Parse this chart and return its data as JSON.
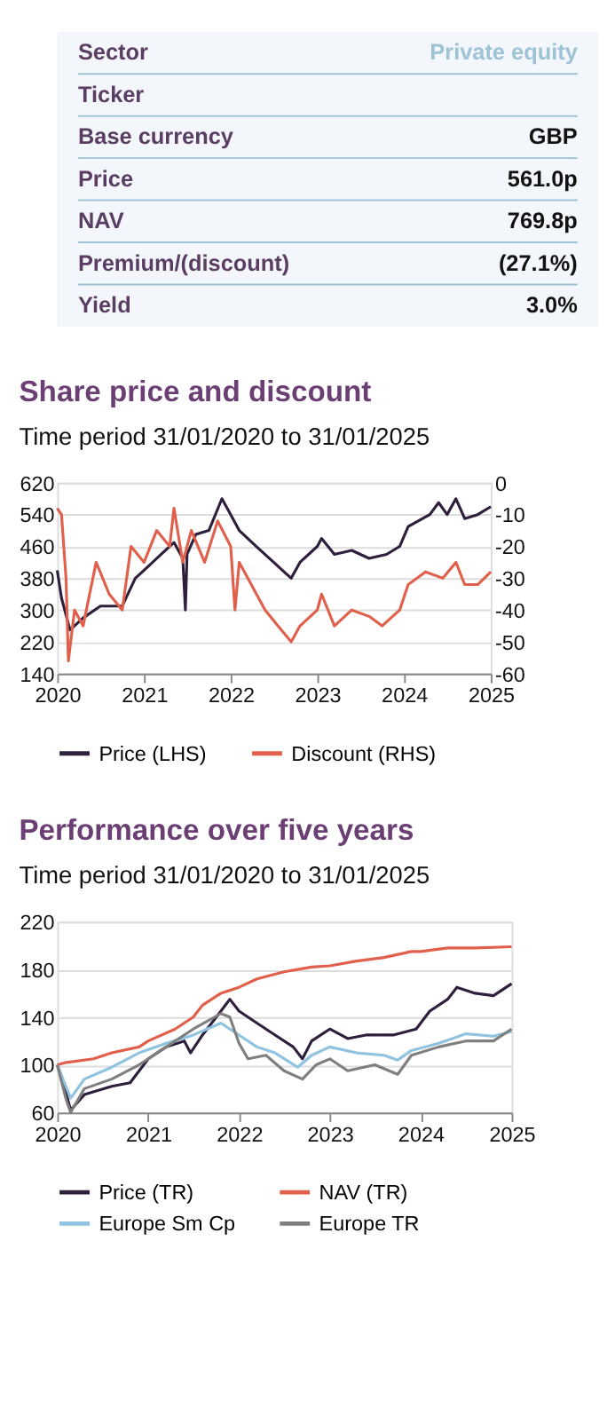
{
  "chart_data": [
    {
      "type": "other",
      "categories": [
        "Sector",
        "Ticker",
        "Base currency",
        "Price",
        "NAV",
        "Premium/(discount)",
        "Yield"
      ],
      "value_labels": [
        "Private equity",
        null,
        "GBP",
        "561.0p",
        "769.8p",
        "(27.1%)",
        "3.0%"
      ]
    },
    {
      "type": "line",
      "title": "Share price and discount",
      "subtitle": "Time period 31/01/2020 to 31/01/2025",
      "xlim": [
        "2020-01-31",
        "2025-01-31"
      ],
      "xticks": [
        {
          "value": "2020-01-31",
          "label": "2020"
        },
        {
          "value": "2021-01-31",
          "label": "2021"
        },
        {
          "value": "2022-01-31",
          "label": "2022"
        },
        {
          "value": "2023-01-31",
          "label": "2023"
        },
        {
          "value": "2024-01-31",
          "label": "2024"
        },
        {
          "value": "2025-01-31",
          "label": "2025"
        }
      ],
      "ylim": [
        140,
        620
      ],
      "yticks": [
        140,
        220,
        300,
        380,
        460,
        540,
        620
      ],
      "y2lim": [
        -60,
        0
      ],
      "y2ticks": [
        -60,
        -50,
        -40,
        -30,
        -20,
        -10,
        0
      ],
      "grid": "y",
      "legend": "bottom",
      "series": [
        {
          "name": "Price (LHS)",
          "color": "#2e1f3d",
          "x": [
            "2020-01-31",
            "2020-02-18",
            "2020-03-25",
            "2020-05-19",
            "2020-07-31",
            "2020-10-31",
            "2020-12-25",
            "2021-01-31",
            "2021-04-13",
            "2021-06-06",
            "2021-07-13",
            "2021-07-24",
            "2021-07-31",
            "2021-09-06",
            "2021-10-31",
            "2021-12-25",
            "2022-01-31",
            "2022-03-08",
            "2022-05-19",
            "2022-07-31",
            "2022-09-24",
            "2022-10-13",
            "2022-11-19",
            "2023-01-31",
            "2023-02-18",
            "2023-04-13",
            "2023-06-25",
            "2023-09-06",
            "2023-11-19",
            "2024-01-13",
            "2024-02-18",
            "2024-05-19",
            "2024-06-25",
            "2024-07-31",
            "2024-09-06",
            "2024-10-13",
            "2024-12-07",
            "2025-01-31"
          ],
          "values": [
            400,
            330,
            250,
            280,
            310,
            310,
            380,
            400,
            440,
            470,
            430,
            300,
            440,
            490,
            500,
            580,
            540,
            500,
            460,
            420,
            390,
            380,
            420,
            460,
            480,
            440,
            450,
            430,
            440,
            460,
            510,
            540,
            570,
            540,
            580,
            530,
            540,
            560
          ]
        },
        {
          "name": "Discount (RHS)",
          "color": "#e0604c",
          "axis": "y2",
          "x": [
            "2020-01-31",
            "2020-02-18",
            "2020-03-08",
            "2020-03-18",
            "2020-04-13",
            "2020-05-19",
            "2020-07-13",
            "2020-09-06",
            "2020-10-31",
            "2020-12-07",
            "2021-01-31",
            "2021-03-25",
            "2021-05-19",
            "2021-06-06",
            "2021-07-13",
            "2021-08-18",
            "2021-10-13",
            "2021-12-07",
            "2022-01-31",
            "2022-02-18",
            "2022-03-08",
            "2022-04-13",
            "2022-06-25",
            "2022-08-18",
            "2022-10-13",
            "2022-11-19",
            "2023-01-31",
            "2023-02-18",
            "2023-04-13",
            "2023-06-25",
            "2023-09-06",
            "2023-10-31",
            "2024-01-13",
            "2024-02-18",
            "2024-05-01",
            "2024-07-13",
            "2024-09-06",
            "2024-10-13",
            "2024-12-07",
            "2025-01-31"
          ],
          "values": [
            -8,
            -10,
            -30,
            -56,
            -40,
            -45,
            -25,
            -35,
            -40,
            -20,
            -25,
            -15,
            -20,
            -8,
            -25,
            -15,
            -25,
            -12,
            -20,
            -40,
            -25,
            -30,
            -40,
            -45,
            -50,
            -45,
            -40,
            -35,
            -45,
            -40,
            -42,
            -45,
            -40,
            -32,
            -28,
            -30,
            -25,
            -32,
            -32,
            -28
          ]
        }
      ]
    },
    {
      "type": "line",
      "title": "Performance over five years",
      "subtitle": "Time period 31/01/2020 to 31/01/2025",
      "xlim": [
        "2020-01-31",
        "2025-01-31"
      ],
      "xticks": [
        {
          "value": "2020-01-31",
          "label": "2020"
        },
        {
          "value": "2021-01-31",
          "label": "2021"
        },
        {
          "value": "2022-01-31",
          "label": "2022"
        },
        {
          "value": "2023-01-31",
          "label": "2023"
        },
        {
          "value": "2024-01-31",
          "label": "2024"
        },
        {
          "value": "2025-01-31",
          "label": "2025"
        }
      ],
      "ylim": [
        60,
        220
      ],
      "yticks": [
        60,
        100,
        140,
        180,
        220
      ],
      "grid": "y",
      "legend": "bottom",
      "series": [
        {
          "name": "Price (TR)",
          "color": "#2e1f3d",
          "x": [
            "2020-01-31",
            "2020-02-18",
            "2020-03-25",
            "2020-05-19",
            "2020-09-06",
            "2020-11-19",
            "2021-01-31",
            "2021-04-13",
            "2021-06-25",
            "2021-07-20",
            "2021-09-06",
            "2021-11-19",
            "2021-12-25",
            "2022-01-31",
            "2022-04-13",
            "2022-06-25",
            "2022-09-06",
            "2022-10-13",
            "2022-11-19",
            "2023-01-31",
            "2023-04-13",
            "2023-06-25",
            "2023-10-13",
            "2024-01-13",
            "2024-03-08",
            "2024-05-19",
            "2024-06-25",
            "2024-09-06",
            "2024-11-19",
            "2025-01-31"
          ],
          "values": [
            100,
            90,
            62,
            75,
            82,
            85,
            105,
            115,
            120,
            110,
            125,
            145,
            155,
            145,
            135,
            125,
            115,
            105,
            120,
            130,
            122,
            125,
            125,
            130,
            145,
            155,
            165,
            160,
            158,
            168
          ]
        },
        {
          "name": "NAV (TR)",
          "color": "#e0604c",
          "x": [
            "2020-01-31",
            "2020-03-08",
            "2020-06-25",
            "2020-09-06",
            "2020-12-25",
            "2021-01-31",
            "2021-05-19",
            "2021-07-31",
            "2021-09-06",
            "2021-11-19",
            "2022-01-31",
            "2022-04-13",
            "2022-07-31",
            "2022-11-19",
            "2023-01-31",
            "2023-05-19",
            "2023-09-06",
            "2023-12-25",
            "2024-01-31",
            "2024-05-19",
            "2024-09-06",
            "2025-01-31"
          ],
          "values": [
            100,
            102,
            105,
            110,
            115,
            120,
            130,
            140,
            150,
            160,
            165,
            172,
            178,
            182,
            183,
            187,
            190,
            195,
            195,
            198,
            198,
            199
          ]
        },
        {
          "name": "Europe Sm Cp",
          "color": "#8fc3e0",
          "x": [
            "2020-01-31",
            "2020-03-25",
            "2020-05-19",
            "2020-09-06",
            "2020-12-25",
            "2021-04-13",
            "2021-07-31",
            "2021-11-19",
            "2022-01-31",
            "2022-04-13",
            "2022-06-25",
            "2022-09-24",
            "2022-11-19",
            "2023-01-31",
            "2023-05-19",
            "2023-09-06",
            "2023-10-31",
            "2023-12-25",
            "2024-04-13",
            "2024-07-31",
            "2024-11-19",
            "2025-01-31"
          ],
          "values": [
            100,
            72,
            88,
            98,
            110,
            118,
            125,
            135,
            125,
            115,
            110,
            98,
            108,
            115,
            110,
            108,
            104,
            112,
            118,
            126,
            124,
            128
          ]
        },
        {
          "name": "Europe TR",
          "color": "#7f7f7f",
          "x": [
            "2020-01-31",
            "2020-03-08",
            "2020-03-25",
            "2020-05-19",
            "2020-09-06",
            "2020-12-25",
            "2021-04-13",
            "2021-07-31",
            "2021-11-19",
            "2021-12-25",
            "2022-01-31",
            "2022-03-08",
            "2022-05-19",
            "2022-07-31",
            "2022-10-13",
            "2022-12-07",
            "2023-01-31",
            "2023-04-13",
            "2023-07-31",
            "2023-10-31",
            "2023-12-25",
            "2024-04-13",
            "2024-07-31",
            "2024-11-19",
            "2025-01-31"
          ],
          "values": [
            100,
            70,
            60,
            80,
            88,
            100,
            115,
            130,
            143,
            140,
            118,
            105,
            108,
            95,
            88,
            100,
            105,
            95,
            100,
            92,
            108,
            115,
            120,
            120,
            130
          ]
        }
      ]
    }
  ]
}
